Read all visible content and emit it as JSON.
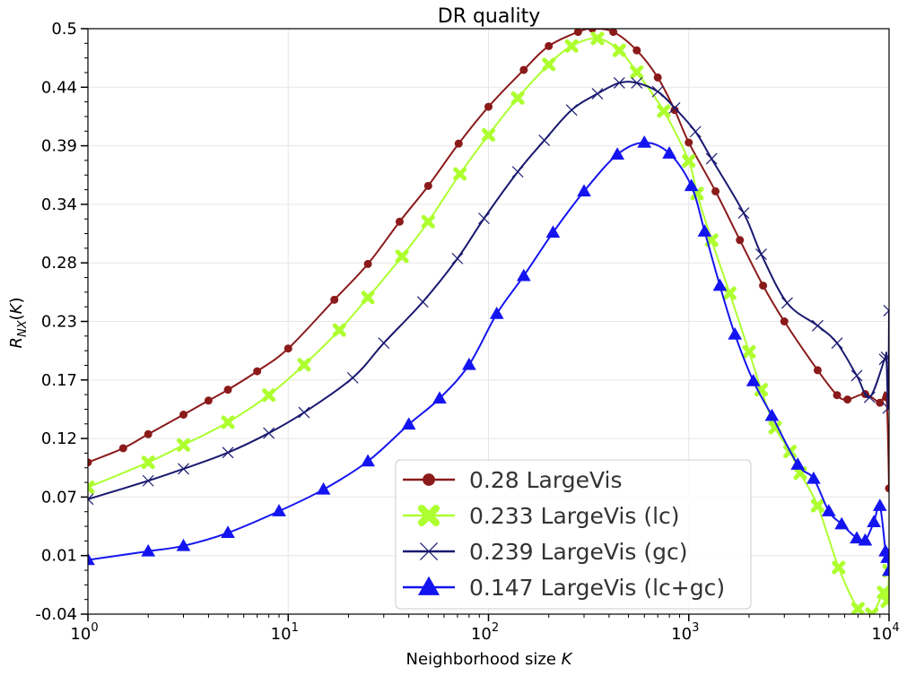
{
  "chart_data": {
    "type": "line",
    "title": "DR quality",
    "xlabel": "Neighborhood size K",
    "ylabel": "R_NX(K)",
    "x_scale": "log",
    "xlim": [
      1,
      10000
    ],
    "ylim": [
      -0.04,
      0.5
    ],
    "x_ticks": [
      "10^0",
      "10^1",
      "10^2",
      "10^3",
      "10^4"
    ],
    "y_ticks": [
      "0.5",
      "0.44",
      "0.39",
      "0.34",
      "0.28",
      "0.23",
      "0.17",
      "0.12",
      "0.07",
      "0.01",
      "-0.04"
    ],
    "grid": true,
    "legend_position": "lower-center",
    "series": [
      {
        "name": "0.28 LargeVis",
        "color": "#8b1a1a",
        "marker": "circle",
        "x": [
          1,
          1.5,
          2,
          3,
          4,
          5,
          7,
          10,
          17,
          25,
          36,
          50,
          71,
          100,
          150,
          200,
          280,
          330,
          420,
          550,
          700,
          850,
          1000,
          1360,
          1800,
          2350,
          3000,
          4400,
          5500,
          6200,
          7600,
          9000,
          9700,
          10000
        ],
        "y": [
          0.1,
          0.113,
          0.126,
          0.144,
          0.157,
          0.167,
          0.184,
          0.205,
          0.25,
          0.283,
          0.322,
          0.355,
          0.394,
          0.428,
          0.462,
          0.484,
          0.497,
          0.5,
          0.497,
          0.48,
          0.455,
          0.425,
          0.395,
          0.35,
          0.305,
          0.263,
          0.23,
          0.185,
          0.162,
          0.158,
          0.163,
          0.155,
          0.16,
          0.076
        ]
      },
      {
        "name": "0.233 LargeVis (lc)",
        "color": "#adff2f",
        "marker": "x-thick",
        "x": [
          1,
          2,
          3,
          5,
          8,
          12,
          18,
          25,
          37,
          50,
          72,
          100,
          140,
          200,
          260,
          350,
          450,
          550,
          750,
          1000,
          1100,
          1300,
          1600,
          2000,
          2300,
          2700,
          3200,
          3600,
          4400,
          5600,
          7000,
          8200,
          9400,
          9800,
          10000
        ],
        "y": [
          0.077,
          0.1,
          0.116,
          0.137,
          0.162,
          0.19,
          0.222,
          0.252,
          0.29,
          0.322,
          0.366,
          0.402,
          0.436,
          0.467,
          0.484,
          0.491,
          0.48,
          0.46,
          0.424,
          0.378,
          0.348,
          0.305,
          0.256,
          0.202,
          0.167,
          0.132,
          0.11,
          0.09,
          0.06,
          0.003,
          -0.035,
          -0.04,
          -0.02,
          -0.028,
          0.0
        ]
      },
      {
        "name": "0.239 LargeVis (gc)",
        "color": "#191970",
        "marker": "x-thin",
        "x": [
          1,
          2,
          3,
          5,
          8,
          12,
          21,
          30,
          47,
          70,
          95,
          140,
          190,
          260,
          350,
          450,
          550,
          700,
          850,
          1080,
          1300,
          1880,
          2300,
          3100,
          4400,
          5500,
          6900,
          8000,
          9500,
          9700,
          9900,
          10000
        ],
        "y": [
          0.066,
          0.083,
          0.094,
          0.109,
          0.127,
          0.146,
          0.178,
          0.21,
          0.248,
          0.288,
          0.325,
          0.368,
          0.397,
          0.425,
          0.44,
          0.45,
          0.45,
          0.442,
          0.427,
          0.405,
          0.38,
          0.33,
          0.292,
          0.247,
          0.226,
          0.21,
          0.18,
          0.16,
          0.195,
          0.197,
          0.15,
          0.24
        ]
      },
      {
        "name": "0.147 LargeVis (lc+gc)",
        "color": "#1414f0",
        "marker": "triangle",
        "x": [
          1,
          2,
          3,
          5,
          9,
          15,
          25,
          40,
          57,
          80,
          110,
          150,
          210,
          300,
          440,
          600,
          800,
          1030,
          1200,
          1430,
          1700,
          2100,
          2600,
          3500,
          4200,
          5000,
          5800,
          6900,
          7600,
          8400,
          9000,
          9600,
          9800,
          10000
        ],
        "y": [
          0.01,
          0.018,
          0.023,
          0.035,
          0.055,
          0.075,
          0.101,
          0.135,
          0.159,
          0.19,
          0.237,
          0.272,
          0.312,
          0.35,
          0.384,
          0.395,
          0.385,
          0.355,
          0.313,
          0.263,
          0.218,
          0.175,
          0.143,
          0.098,
          0.085,
          0.055,
          0.043,
          0.03,
          0.028,
          0.045,
          0.06,
          0.018,
          0.012,
          0.0
        ]
      }
    ]
  }
}
